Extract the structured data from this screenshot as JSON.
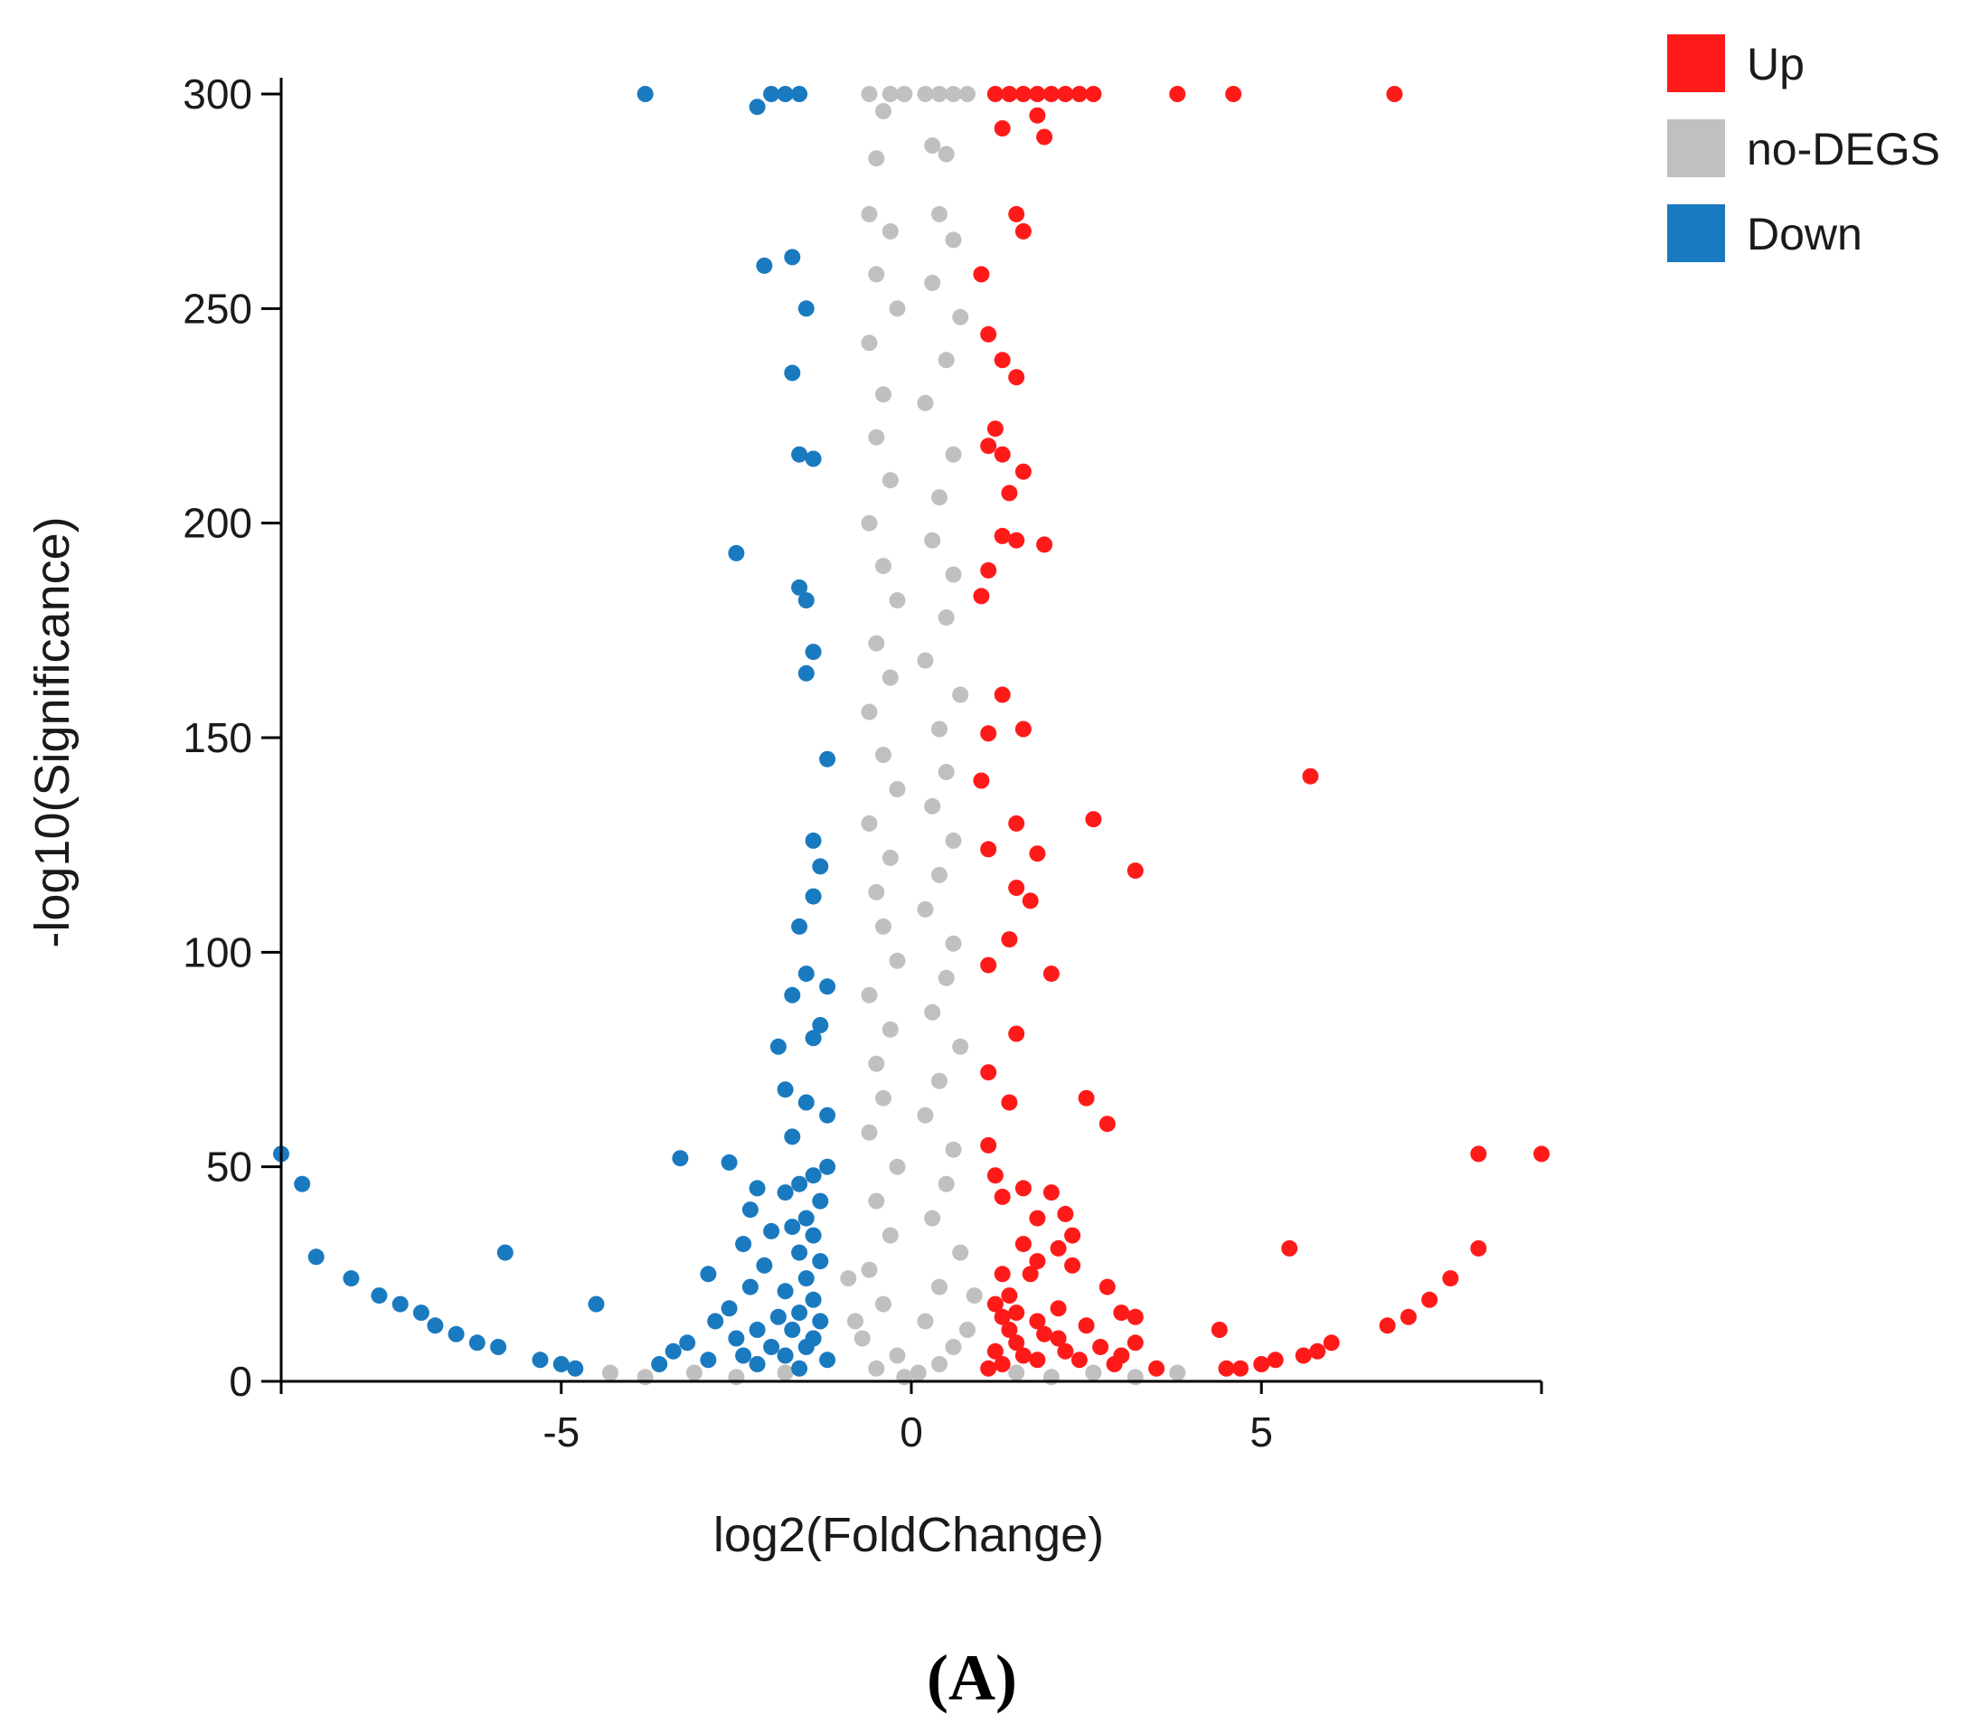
{
  "chart_data": {
    "type": "scatter",
    "title": "",
    "xlabel": "log2(FoldChange)",
    "ylabel": "-log10(Significance)",
    "xlim": [
      -9,
      9
    ],
    "ylim": [
      0,
      300
    ],
    "xticks": [
      -5,
      0,
      5
    ],
    "xtick_labels": [
      "-5",
      "0",
      "5"
    ],
    "yticks": [
      0,
      50,
      100,
      150,
      200,
      250,
      300
    ],
    "ytick_labels": [
      "0",
      "50",
      "100",
      "150",
      "200",
      "250",
      "300"
    ],
    "grid": false,
    "legend_position": "top-right",
    "legend": [
      {
        "name": "Up",
        "color": "#ff1a1a"
      },
      {
        "name": "no-DEGS",
        "color": "#c0c0c0"
      },
      {
        "name": "Down",
        "color": "#1a7ac0"
      }
    ],
    "panel_label": "(A)",
    "series": [
      {
        "name": "Up",
        "color": "#ff1a1a",
        "points": [
          [
            1.2,
            300
          ],
          [
            1.4,
            300
          ],
          [
            1.6,
            300
          ],
          [
            1.8,
            300
          ],
          [
            2.0,
            300
          ],
          [
            2.2,
            300
          ],
          [
            2.4,
            300
          ],
          [
            2.6,
            300
          ],
          [
            3.8,
            300
          ],
          [
            4.6,
            300
          ],
          [
            6.9,
            300
          ],
          [
            1.3,
            292
          ],
          [
            1.8,
            295
          ],
          [
            1.9,
            290
          ],
          [
            1.5,
            272
          ],
          [
            1.6,
            268
          ],
          [
            1.0,
            258
          ],
          [
            1.1,
            244
          ],
          [
            1.3,
            238
          ],
          [
            1.5,
            234
          ],
          [
            1.2,
            222
          ],
          [
            1.1,
            218
          ],
          [
            1.3,
            216
          ],
          [
            1.6,
            212
          ],
          [
            1.4,
            207
          ],
          [
            1.3,
            197
          ],
          [
            1.5,
            196
          ],
          [
            1.9,
            195
          ],
          [
            1.1,
            189
          ],
          [
            1.0,
            183
          ],
          [
            1.3,
            160
          ],
          [
            1.1,
            151
          ],
          [
            1.6,
            152
          ],
          [
            5.7,
            141
          ],
          [
            1.0,
            140
          ],
          [
            2.6,
            131
          ],
          [
            1.5,
            130
          ],
          [
            1.8,
            123
          ],
          [
            3.2,
            119
          ],
          [
            1.1,
            124
          ],
          [
            1.5,
            115
          ],
          [
            1.7,
            112
          ],
          [
            1.4,
            103
          ],
          [
            1.1,
            97
          ],
          [
            2.0,
            95
          ],
          [
            1.5,
            81
          ],
          [
            1.1,
            72
          ],
          [
            2.5,
            66
          ],
          [
            1.4,
            65
          ],
          [
            2.8,
            60
          ],
          [
            1.1,
            55
          ],
          [
            1.2,
            48
          ],
          [
            1.6,
            45
          ],
          [
            1.3,
            43
          ],
          [
            2.0,
            44
          ],
          [
            2.2,
            39
          ],
          [
            1.8,
            38
          ],
          [
            2.3,
            34
          ],
          [
            1.6,
            32
          ],
          [
            2.1,
            31
          ],
          [
            5.4,
            31
          ],
          [
            8.1,
            31
          ],
          [
            1.8,
            28
          ],
          [
            2.3,
            27
          ],
          [
            8.1,
            53
          ],
          [
            9.0,
            53
          ],
          [
            1.3,
            25
          ],
          [
            1.7,
            25
          ],
          [
            1.4,
            20
          ],
          [
            1.2,
            18
          ],
          [
            2.8,
            22
          ],
          [
            7.7,
            24
          ],
          [
            1.5,
            16
          ],
          [
            2.1,
            17
          ],
          [
            3.0,
            16
          ],
          [
            1.3,
            15
          ],
          [
            3.2,
            15
          ],
          [
            1.8,
            14
          ],
          [
            7.4,
            19
          ],
          [
            7.1,
            15
          ],
          [
            2.5,
            13
          ],
          [
            1.4,
            12
          ],
          [
            4.4,
            12
          ],
          [
            6.8,
            13
          ],
          [
            1.9,
            11
          ],
          [
            2.1,
            10
          ],
          [
            3.2,
            9
          ],
          [
            1.5,
            9
          ],
          [
            2.7,
            8
          ],
          [
            2.2,
            7
          ],
          [
            1.2,
            7
          ],
          [
            3.0,
            6
          ],
          [
            1.6,
            6
          ],
          [
            6.0,
            9
          ],
          [
            5.8,
            7
          ],
          [
            5.6,
            6
          ],
          [
            5.2,
            5
          ],
          [
            5.0,
            4
          ],
          [
            4.7,
            3
          ],
          [
            4.5,
            3
          ],
          [
            1.8,
            5
          ],
          [
            2.4,
            5
          ],
          [
            1.3,
            4
          ],
          [
            2.9,
            4
          ],
          [
            3.5,
            3
          ],
          [
            1.1,
            3
          ]
        ]
      },
      {
        "name": "Down",
        "color": "#1a7ac0",
        "points": [
          [
            -3.8,
            300
          ],
          [
            -2.0,
            300
          ],
          [
            -1.8,
            300
          ],
          [
            -1.6,
            300
          ],
          [
            -2.2,
            297
          ],
          [
            -2.1,
            260
          ],
          [
            -1.7,
            262
          ],
          [
            -1.5,
            250
          ],
          [
            -1.7,
            235
          ],
          [
            -1.6,
            216
          ],
          [
            -1.4,
            215
          ],
          [
            -2.5,
            193
          ],
          [
            -1.6,
            185
          ],
          [
            -1.5,
            182
          ],
          [
            -1.4,
            170
          ],
          [
            -1.5,
            165
          ],
          [
            -1.2,
            145
          ],
          [
            -1.4,
            126
          ],
          [
            -1.3,
            120
          ],
          [
            -1.4,
            113
          ],
          [
            -1.6,
            106
          ],
          [
            -1.5,
            95
          ],
          [
            -1.2,
            92
          ],
          [
            -1.7,
            90
          ],
          [
            -1.3,
            83
          ],
          [
            -1.4,
            80
          ],
          [
            -1.9,
            78
          ],
          [
            -1.8,
            68
          ],
          [
            -1.5,
            65
          ],
          [
            -1.2,
            62
          ],
          [
            -1.7,
            57
          ],
          [
            -3.3,
            52
          ],
          [
            -2.6,
            51
          ],
          [
            -1.2,
            50
          ],
          [
            -1.4,
            48
          ],
          [
            -1.6,
            46
          ],
          [
            -2.2,
            45
          ],
          [
            -1.8,
            44
          ],
          [
            -1.3,
            42
          ],
          [
            -2.3,
            40
          ],
          [
            -1.5,
            38
          ],
          [
            -1.7,
            36
          ],
          [
            -2.0,
            35
          ],
          [
            -1.4,
            34
          ],
          [
            -2.4,
            32
          ],
          [
            -1.6,
            30
          ],
          [
            -5.8,
            30
          ],
          [
            -8.5,
            29
          ],
          [
            -1.3,
            28
          ],
          [
            -2.1,
            27
          ],
          [
            -2.9,
            25
          ],
          [
            -1.5,
            24
          ],
          [
            -8.0,
            24
          ],
          [
            -2.3,
            22
          ],
          [
            -1.8,
            21
          ],
          [
            -7.6,
            20
          ],
          [
            -1.4,
            19
          ],
          [
            -4.5,
            18
          ],
          [
            -7.3,
            18
          ],
          [
            -2.6,
            17
          ],
          [
            -1.6,
            16
          ],
          [
            -7.0,
            16
          ],
          [
            -1.9,
            15
          ],
          [
            -2.8,
            14
          ],
          [
            -1.3,
            14
          ],
          [
            -6.8,
            13
          ],
          [
            -2.2,
            12
          ],
          [
            -1.7,
            12
          ],
          [
            -6.5,
            11
          ],
          [
            -2.5,
            10
          ],
          [
            -1.4,
            10
          ],
          [
            -3.2,
            9
          ],
          [
            -6.2,
            9
          ],
          [
            -2.0,
            8
          ],
          [
            -1.5,
            8
          ],
          [
            -5.9,
            8
          ],
          [
            -3.4,
            7
          ],
          [
            -2.4,
            6
          ],
          [
            -1.8,
            6
          ],
          [
            -5.3,
            5
          ],
          [
            -2.9,
            5
          ],
          [
            -1.2,
            5
          ],
          [
            -5.0,
            4
          ],
          [
            -3.6,
            4
          ],
          [
            -2.2,
            4
          ],
          [
            -4.8,
            3
          ],
          [
            -1.6,
            3
          ],
          [
            -9.0,
            53
          ],
          [
            -8.7,
            46
          ]
        ]
      },
      {
        "name": "no-DEGS",
        "color": "#c0c0c0",
        "points": [
          [
            -0.6,
            300
          ],
          [
            -0.3,
            300
          ],
          [
            -0.1,
            300
          ],
          [
            0.2,
            300
          ],
          [
            0.4,
            300
          ],
          [
            0.6,
            300
          ],
          [
            0.8,
            300
          ],
          [
            -0.4,
            296
          ],
          [
            -0.5,
            285
          ],
          [
            0.3,
            288
          ],
          [
            0.5,
            286
          ],
          [
            -0.6,
            272
          ],
          [
            0.4,
            272
          ],
          [
            -0.3,
            268
          ],
          [
            0.6,
            266
          ],
          [
            -0.5,
            258
          ],
          [
            0.3,
            256
          ],
          [
            -0.2,
            250
          ],
          [
            0.7,
            248
          ],
          [
            -0.6,
            242
          ],
          [
            0.5,
            238
          ],
          [
            -0.4,
            230
          ],
          [
            0.2,
            228
          ],
          [
            -0.5,
            220
          ],
          [
            0.6,
            216
          ],
          [
            -0.3,
            210
          ],
          [
            0.4,
            206
          ],
          [
            -0.6,
            200
          ],
          [
            0.3,
            196
          ],
          [
            -0.4,
            190
          ],
          [
            0.6,
            188
          ],
          [
            -0.2,
            182
          ],
          [
            0.5,
            178
          ],
          [
            -0.5,
            172
          ],
          [
            0.2,
            168
          ],
          [
            -0.3,
            164
          ],
          [
            0.7,
            160
          ],
          [
            -0.6,
            156
          ],
          [
            0.4,
            152
          ],
          [
            -0.4,
            146
          ],
          [
            0.5,
            142
          ],
          [
            -0.2,
            138
          ],
          [
            0.3,
            134
          ],
          [
            -0.6,
            130
          ],
          [
            0.6,
            126
          ],
          [
            -0.3,
            122
          ],
          [
            0.4,
            118
          ],
          [
            -0.5,
            114
          ],
          [
            0.2,
            110
          ],
          [
            -0.4,
            106
          ],
          [
            0.6,
            102
          ],
          [
            -0.2,
            98
          ],
          [
            0.5,
            94
          ],
          [
            -0.6,
            90
          ],
          [
            0.3,
            86
          ],
          [
            -0.3,
            82
          ],
          [
            0.7,
            78
          ],
          [
            -0.5,
            74
          ],
          [
            0.4,
            70
          ],
          [
            -0.4,
            66
          ],
          [
            0.2,
            62
          ],
          [
            -0.6,
            58
          ],
          [
            0.6,
            54
          ],
          [
            -0.2,
            50
          ],
          [
            0.5,
            46
          ],
          [
            -0.5,
            42
          ],
          [
            0.3,
            38
          ],
          [
            -0.3,
            34
          ],
          [
            0.7,
            30
          ],
          [
            -0.6,
            26
          ],
          [
            0.4,
            22
          ],
          [
            -0.4,
            18
          ],
          [
            0.2,
            14
          ],
          [
            -0.7,
            10
          ],
          [
            0.6,
            8
          ],
          [
            -0.2,
            6
          ],
          [
            0.4,
            4
          ],
          [
            -0.5,
            3
          ],
          [
            0.1,
            2
          ],
          [
            -0.1,
            1
          ],
          [
            0.8,
            12
          ],
          [
            -0.8,
            14
          ],
          [
            0.9,
            20
          ],
          [
            -0.9,
            24
          ],
          [
            1.5,
            2
          ],
          [
            2.0,
            1
          ],
          [
            2.6,
            2
          ],
          [
            3.2,
            1
          ],
          [
            3.8,
            2
          ],
          [
            -1.8,
            2
          ],
          [
            -2.5,
            1
          ],
          [
            -3.1,
            2
          ],
          [
            -3.8,
            1
          ],
          [
            -4.3,
            2
          ]
        ]
      }
    ]
  }
}
